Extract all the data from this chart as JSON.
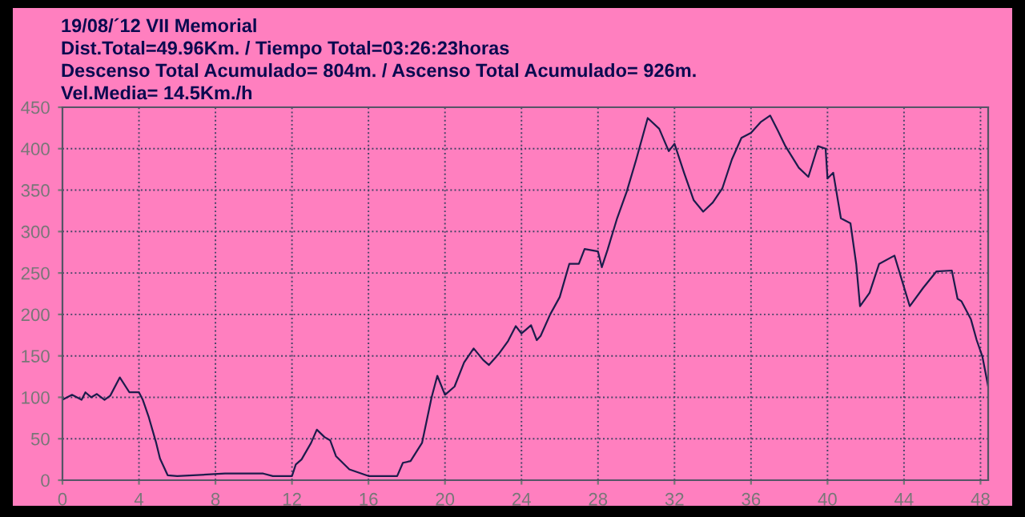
{
  "chart_data": {
    "type": "line",
    "title": "19/08/´12 VII Memorial",
    "annotations": [
      "Dist.Total=49.96Km. / Tiempo Total=03:26:23horas",
      "Descenso Total Acumulado= 804m. / Ascenso Total Acumulado= 926m.",
      "Vel.Media= 14.5Km./h"
    ],
    "series": [
      {
        "color": "#1c1c4c",
        "x": [
          0,
          0.5,
          1,
          1.2,
          1.5,
          1.8,
          2.2,
          2.5,
          3,
          3.5,
          4,
          4.2,
          4.5,
          4.9,
          5.1,
          5.5,
          6,
          8.5,
          10.5,
          11,
          12,
          12.2,
          12.5,
          13,
          13.3,
          13.7,
          14,
          14.3,
          15,
          16,
          17.5,
          17.8,
          18.2,
          18.8,
          19.3,
          19.6,
          20,
          20.5,
          21,
          21.5,
          22,
          22.3,
          22.8,
          23.3,
          23.7,
          24,
          24.2,
          24.5,
          24.8,
          25,
          25.5,
          26,
          26.5,
          27,
          27.3,
          28,
          28.2,
          28.5,
          29,
          29.5,
          30,
          30.6,
          31.2,
          31.7,
          32,
          32.5,
          33,
          33.5,
          34,
          34.5,
          35,
          35.5,
          36,
          36.5,
          37,
          37.4,
          37.8,
          38.5,
          39,
          39.5,
          39.9,
          40,
          40.3,
          40.7,
          41.2,
          41.5,
          41.7,
          42.2,
          42.7,
          43.5,
          44.3,
          45,
          45.7,
          46.5,
          46.8,
          47,
          47.5,
          47.8,
          48.1,
          48.4
        ],
        "values": [
          97,
          103,
          97,
          106,
          100,
          104,
          97,
          102,
          124,
          106,
          106,
          97,
          77,
          45,
          26,
          6,
          5,
          8,
          8,
          5,
          5,
          19,
          25,
          45,
          61,
          52,
          48,
          29,
          13,
          5,
          5,
          21,
          23,
          45,
          100,
          126,
          103,
          113,
          142,
          159,
          145,
          139,
          152,
          168,
          186,
          177,
          181,
          187,
          169,
          174,
          200,
          221,
          261,
          261,
          279,
          276,
          257,
          278,
          316,
          348,
          387,
          437,
          424,
          397,
          406,
          371,
          338,
          324,
          335,
          352,
          387,
          413,
          419,
          432,
          440,
          422,
          403,
          377,
          366,
          403,
          400,
          364,
          371,
          316,
          310,
          261,
          210,
          226,
          261,
          271,
          210,
          232,
          252,
          253,
          219,
          216,
          194,
          169,
          149,
          113
        ]
      }
    ],
    "xlim": [
      0,
      48.4
    ],
    "xticks": [
      0,
      4,
      8,
      12,
      16,
      20,
      24,
      28,
      32,
      36,
      40,
      44,
      48
    ],
    "ylim": [
      0,
      450
    ],
    "yticks": [
      0,
      50,
      100,
      150,
      200,
      250,
      300,
      350,
      400,
      450
    ],
    "grid": true,
    "legend": false
  }
}
